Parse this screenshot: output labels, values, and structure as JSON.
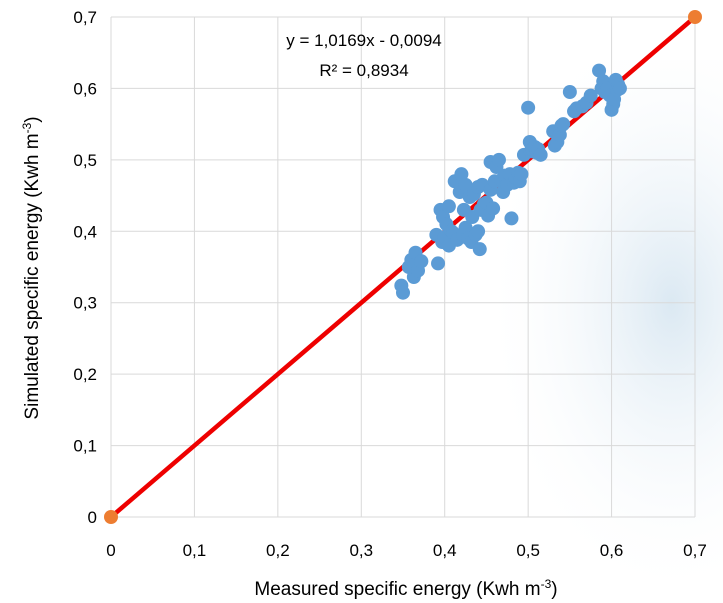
{
  "chart_data": {
    "type": "scatter",
    "title": "",
    "xlabel": "Measured  specific energy (Kwh m",
    "xlabel_sup": "-3",
    "xlabel_end": ")",
    "ylabel": "Simulated  specific energy (Kwh m",
    "ylabel_sup": "-3",
    "ylabel_end": ")",
    "xlim": [
      0,
      0.7
    ],
    "ylim": [
      0,
      0.7
    ],
    "x_ticks": [
      "0",
      "0,1",
      "0,2",
      "0,3",
      "0,4",
      "0,5",
      "0,6",
      "0,7"
    ],
    "y_ticks": [
      "0",
      "0,1",
      "0,2",
      "0,3",
      "0,4",
      "0,5",
      "0,6",
      "0,7"
    ],
    "grid": true,
    "legend": "none",
    "equation": "y = 1,0169x - 0,0094",
    "r_squared": "R² = 0,8934",
    "colors": {
      "points": "#5b9bd5",
      "line": "#ee0000",
      "endpoints": "#ed7d31",
      "grid": "#d9d9d9"
    },
    "reference_line": {
      "x": [
        0,
        0.7
      ],
      "y": [
        0,
        0.7
      ]
    },
    "endpoints": {
      "x": [
        0,
        0.7
      ],
      "y": [
        0,
        0.7
      ]
    },
    "series": [
      {
        "x": [
          0.348,
          0.35,
          0.357,
          0.36,
          0.363,
          0.365,
          0.368,
          0.372,
          0.39,
          0.392,
          0.395,
          0.397,
          0.398,
          0.4,
          0.402,
          0.405,
          0.405,
          0.408,
          0.41,
          0.412,
          0.415,
          0.418,
          0.42,
          0.422,
          0.423,
          0.425,
          0.425,
          0.428,
          0.43,
          0.432,
          0.433,
          0.435,
          0.437,
          0.44,
          0.44,
          0.442,
          0.443,
          0.445,
          0.447,
          0.45,
          0.452,
          0.455,
          0.455,
          0.458,
          0.46,
          0.462,
          0.465,
          0.468,
          0.47,
          0.472,
          0.475,
          0.478,
          0.48,
          0.483,
          0.485,
          0.488,
          0.49,
          0.492,
          0.495,
          0.5,
          0.502,
          0.503,
          0.505,
          0.508,
          0.51,
          0.512,
          0.515,
          0.53,
          0.532,
          0.535,
          0.538,
          0.54,
          0.542,
          0.55,
          0.555,
          0.558,
          0.565,
          0.57,
          0.575,
          0.585,
          0.588,
          0.59,
          0.592,
          0.595,
          0.598,
          0.6,
          0.602,
          0.603,
          0.605,
          0.607,
          0.608,
          0.61
        ],
        "y": [
          0.324,
          0.314,
          0.35,
          0.36,
          0.336,
          0.37,
          0.345,
          0.358,
          0.395,
          0.355,
          0.43,
          0.385,
          0.42,
          0.392,
          0.41,
          0.435,
          0.38,
          0.4,
          0.398,
          0.47,
          0.388,
          0.455,
          0.48,
          0.395,
          0.43,
          0.465,
          0.405,
          0.39,
          0.448,
          0.385,
          0.42,
          0.452,
          0.395,
          0.4,
          0.462,
          0.375,
          0.43,
          0.465,
          0.438,
          0.44,
          0.422,
          0.458,
          0.497,
          0.432,
          0.47,
          0.49,
          0.5,
          0.472,
          0.455,
          0.478,
          0.465,
          0.48,
          0.418,
          0.468,
          0.475,
          0.482,
          0.47,
          0.48,
          0.507,
          0.573,
          0.525,
          0.512,
          0.515,
          0.518,
          0.51,
          0.515,
          0.507,
          0.54,
          0.52,
          0.525,
          0.535,
          0.548,
          0.55,
          0.595,
          0.568,
          0.572,
          0.575,
          0.58,
          0.59,
          0.625,
          0.6,
          0.61,
          0.595,
          0.6,
          0.59,
          0.57,
          0.578,
          0.585,
          0.612,
          0.598,
          0.605,
          0.6
        ]
      }
    ]
  }
}
